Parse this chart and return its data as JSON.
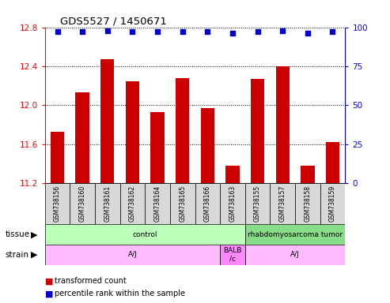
{
  "title": "GDS5527 / 1450671",
  "samples": [
    "GSM738156",
    "GSM738160",
    "GSM738161",
    "GSM738162",
    "GSM738164",
    "GSM738165",
    "GSM738166",
    "GSM738163",
    "GSM738155",
    "GSM738157",
    "GSM738158",
    "GSM738159"
  ],
  "bar_values": [
    11.73,
    12.13,
    12.47,
    12.25,
    11.93,
    12.28,
    11.97,
    11.38,
    12.27,
    12.4,
    11.38,
    11.62
  ],
  "percentile_values": [
    97,
    97,
    98,
    97,
    97,
    97,
    97,
    96,
    97,
    98,
    96,
    97
  ],
  "ylim_left": [
    11.2,
    12.8
  ],
  "ylim_right": [
    0,
    100
  ],
  "yticks_left": [
    11.2,
    11.6,
    12.0,
    12.4,
    12.8
  ],
  "yticks_right": [
    0,
    25,
    50,
    75,
    100
  ],
  "bar_color": "#cc0000",
  "dot_color": "#0000cc",
  "tissue_configs": [
    {
      "text": "control",
      "start": 0,
      "end": 7,
      "color": "#bbffbb"
    },
    {
      "text": "rhabdomyosarcoma tumor",
      "start": 8,
      "end": 11,
      "color": "#88dd88"
    }
  ],
  "strain_configs": [
    {
      "text": "A/J",
      "start": 0,
      "end": 6,
      "color": "#ffbbff"
    },
    {
      "text": "BALB\n/c",
      "start": 7,
      "end": 7,
      "color": "#ff88ff"
    },
    {
      "text": "A/J",
      "start": 8,
      "end": 11,
      "color": "#ffbbff"
    }
  ],
  "tissue_row_label": "tissue",
  "strain_row_label": "strain",
  "legend_red": "transformed count",
  "legend_blue": "percentile rank within the sample",
  "tick_label_bg": "#d8d8d8"
}
